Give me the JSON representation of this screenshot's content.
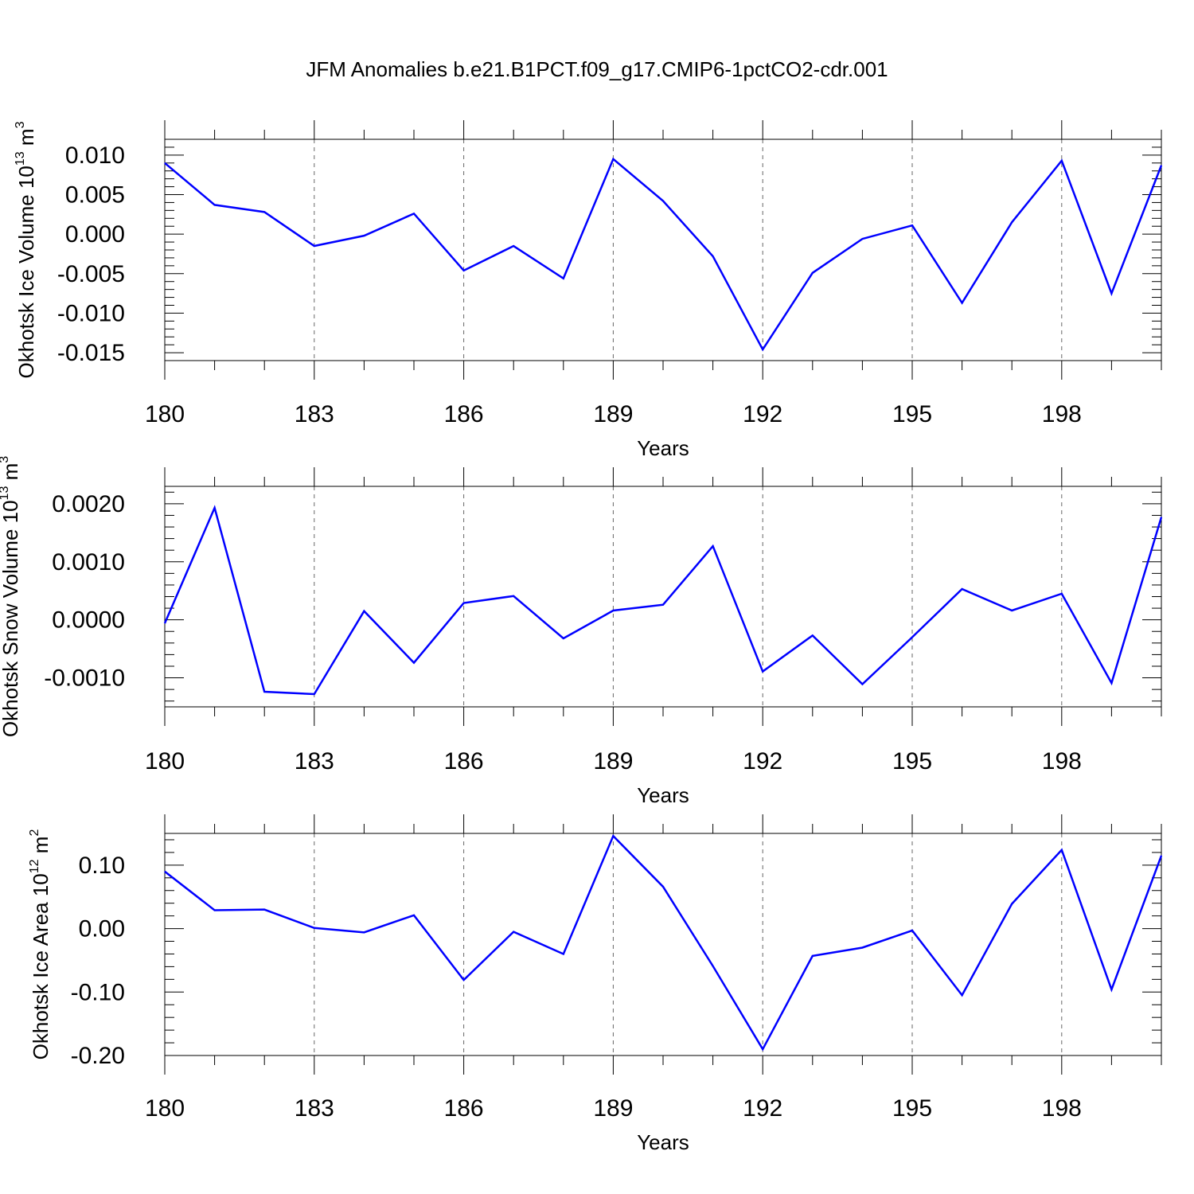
{
  "title": "JFM Anomalies b.e21.B1PCT.f09_g17.CMIP6-1pctCO2-cdr.001",
  "chart_data": [
    {
      "type": "line",
      "ylabel_main": "Okhotsk Ice Volume 10",
      "ylabel_exp": "13",
      "ylabel_unit": " m",
      "ylabel_unit_exp": "3",
      "xlabel": "Years",
      "xlim": [
        180,
        200
      ],
      "ylim": [
        -0.016,
        0.012
      ],
      "x_ticks": [
        "180",
        "183",
        "186",
        "189",
        "192",
        "195",
        "198"
      ],
      "y_ticks": [
        "0.010",
        "0.005",
        "0.000",
        "-0.005",
        "-0.010",
        "-0.015"
      ],
      "grid": "vertical dashed at major x ticks",
      "color": "#0000ff",
      "x": [
        180,
        181,
        182,
        183,
        184,
        185,
        186,
        187,
        188,
        189,
        190,
        191,
        192,
        193,
        194,
        195,
        196,
        197,
        198,
        199,
        200
      ],
      "values": [
        0.009,
        0.0037,
        0.0028,
        -0.0015,
        -0.0002,
        0.0026,
        -0.0046,
        -0.0015,
        -0.0056,
        0.0095,
        0.0042,
        -0.0028,
        -0.0146,
        -0.0049,
        -0.0006,
        0.0011,
        -0.0087,
        0.0015,
        0.0093,
        -0.0075,
        0.0087
      ]
    },
    {
      "type": "line",
      "ylabel_main": "Okhotsk Snow Volume 10",
      "ylabel_exp": "13",
      "ylabel_unit": " m",
      "ylabel_unit_exp": "3",
      "xlabel": "Years",
      "xlim": [
        180,
        200
      ],
      "ylim": [
        -0.0015,
        0.0023
      ],
      "x_ticks": [
        "180",
        "183",
        "186",
        "189",
        "192",
        "195",
        "198"
      ],
      "y_ticks": [
        "0.0020",
        "0.0010",
        "0.0000",
        "-0.0010"
      ],
      "grid": "vertical dashed at major x ticks",
      "color": "#0000ff",
      "x": [
        180,
        181,
        182,
        183,
        184,
        185,
        186,
        187,
        188,
        189,
        190,
        191,
        192,
        193,
        194,
        195,
        196,
        197,
        198,
        199,
        200
      ],
      "values": [
        -6e-05,
        0.00193,
        -0.00124,
        -0.00128,
        0.00015,
        -0.00074,
        0.00029,
        0.00041,
        -0.00032,
        0.00016,
        0.00026,
        0.00127,
        -0.00089,
        -0.00027,
        -0.00111,
        -0.0003,
        0.00053,
        0.00016,
        0.00045,
        -0.00109,
        0.00177
      ]
    },
    {
      "type": "line",
      "ylabel_main": "Okhotsk Ice Area 10",
      "ylabel_exp": "12",
      "ylabel_unit": " m",
      "ylabel_unit_exp": "2",
      "xlabel": "Years",
      "xlim": [
        180,
        200
      ],
      "ylim": [
        -0.2,
        0.15
      ],
      "x_ticks": [
        "180",
        "183",
        "186",
        "189",
        "192",
        "195",
        "198"
      ],
      "y_ticks": [
        "0.10",
        "0.00",
        "-0.10",
        "-0.20"
      ],
      "grid": "vertical dashed at major x ticks",
      "color": "#0000ff",
      "x": [
        180,
        181,
        182,
        183,
        184,
        185,
        186,
        187,
        188,
        189,
        190,
        191,
        192,
        193,
        194,
        195,
        196,
        197,
        198,
        199,
        200
      ],
      "values": [
        0.09,
        0.029,
        0.03,
        0.001,
        -0.006,
        0.021,
        -0.081,
        -0.005,
        -0.04,
        0.146,
        0.066,
        -0.059,
        -0.19,
        -0.043,
        -0.03,
        -0.003,
        -0.105,
        0.039,
        0.124,
        -0.096,
        0.115
      ]
    }
  ]
}
